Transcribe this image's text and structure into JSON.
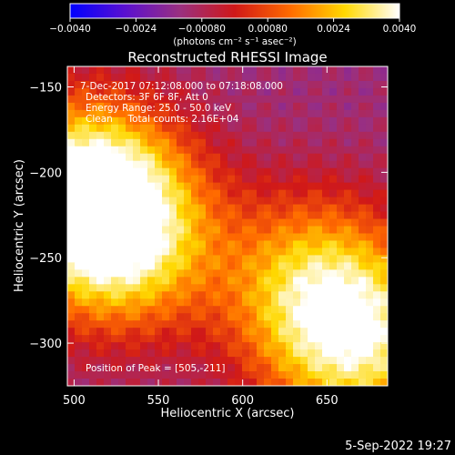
{
  "chart_data": {
    "type": "heatmap",
    "title": "Reconstructed RHESSI Image",
    "xlabel": "Heliocentric X (arcsec)",
    "ylabel": "Heliocentric Y (arcsec)",
    "xlim": [
      496,
      686
    ],
    "ylim": [
      -325,
      -138
    ],
    "x_ticks": [
      500,
      550,
      600,
      650
    ],
    "x_tick_labels": [
      "500",
      "550",
      "600",
      "650"
    ],
    "y_ticks": [
      -150,
      -200,
      -250,
      -300
    ],
    "y_tick_labels": [
      "−150",
      "−200",
      "−250",
      "−300"
    ],
    "colorbar": {
      "range": [
        -0.004,
        0.004
      ],
      "ticks": [
        -0.004,
        -0.0024,
        -0.0008,
        0.0008,
        0.0024,
        0.004
      ],
      "tick_labels": [
        "−0.0040",
        "−0.0024",
        "−0.00080",
        "0.00080",
        "0.0024",
        "0.0040"
      ],
      "unit_label": "(photons cm⁻² s⁻¹ asec⁻²)",
      "colors": [
        "#0000ff",
        "#5a10d0",
        "#9a3080",
        "#d01818",
        "#ff6a00",
        "#ffd800",
        "#ffffff"
      ]
    },
    "annotations": [
      "7-Dec-2017 07:12:08.000 to 07:18:08.000",
      "Detectors: 3F 6F 8F, Att 0",
      "Energy Range: 25.0 - 50.0 keV",
      "Clean     Total counts: 2.16E+04"
    ],
    "peak_label": "Position of Peak = [505,-211]",
    "peak": {
      "x": 505,
      "y": -211
    },
    "sources": [
      {
        "x": 506,
        "y": -211,
        "value": 0.004
      },
      {
        "x": 530,
        "y": -240,
        "value": 0.0026
      },
      {
        "x": 670,
        "y": -300,
        "value": 0.0028
      },
      {
        "x": 640,
        "y": -265,
        "value": 0.002
      }
    ],
    "grid": false,
    "legend": "none"
  },
  "footer": {
    "timestamp": "5-Sep-2022 19:27"
  }
}
